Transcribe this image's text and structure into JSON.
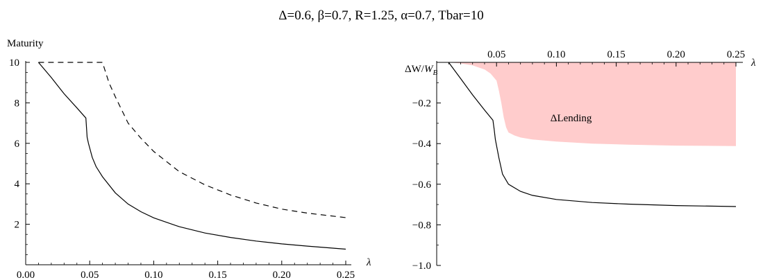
{
  "figure_title": "Δ=0.6, β=0.7, R=1.25, α=0.7, Tbar=10",
  "chart_data": [
    {
      "type": "line",
      "title": "",
      "ylabel": "Maturity",
      "xlabel": "λ",
      "xlim": [
        0,
        0.25
      ],
      "ylim": [
        0,
        10
      ],
      "x_ticks": [
        0.0,
        0.05,
        0.1,
        0.15,
        0.2,
        0.25
      ],
      "x_tick_labels": [
        "0.00",
        "0.05",
        "0.10",
        "0.15",
        "0.20",
        "0.25"
      ],
      "y_ticks": [
        2,
        4,
        6,
        8,
        10
      ],
      "y_tick_labels": [
        "2",
        "4",
        "6",
        "8",
        "10"
      ],
      "grid": false,
      "series": [
        {
          "style": "solid",
          "color": "#000000",
          "points": [
            [
              0.01,
              10.0
            ],
            [
              0.02,
              9.25
            ],
            [
              0.03,
              8.45
            ],
            [
              0.04,
              7.75
            ],
            [
              0.047,
              7.25
            ],
            [
              0.048,
              6.3
            ],
            [
              0.049,
              6.0
            ],
            [
              0.052,
              5.3
            ],
            [
              0.055,
              4.85
            ],
            [
              0.06,
              4.35
            ],
            [
              0.07,
              3.55
            ],
            [
              0.08,
              3.0
            ],
            [
              0.09,
              2.62
            ],
            [
              0.1,
              2.32
            ],
            [
              0.12,
              1.88
            ],
            [
              0.14,
              1.57
            ],
            [
              0.16,
              1.35
            ],
            [
              0.18,
              1.17
            ],
            [
              0.2,
              1.03
            ],
            [
              0.22,
              0.92
            ],
            [
              0.25,
              0.77
            ]
          ]
        },
        {
          "style": "dashed",
          "color": "#000000",
          "points": [
            [
              0.01,
              10.0
            ],
            [
              0.06,
              10.0
            ],
            [
              0.065,
              9.0
            ],
            [
              0.07,
              8.3
            ],
            [
              0.08,
              7.0
            ],
            [
              0.09,
              6.25
            ],
            [
              0.1,
              5.6
            ],
            [
              0.12,
              4.6
            ],
            [
              0.14,
              3.95
            ],
            [
              0.16,
              3.45
            ],
            [
              0.18,
              3.05
            ],
            [
              0.2,
              2.75
            ],
            [
              0.22,
              2.55
            ],
            [
              0.25,
              2.33
            ]
          ]
        }
      ]
    },
    {
      "type": "area",
      "title": "",
      "ylabel": "ΔW/W_B",
      "ylabel_main": "ΔW/",
      "ylabel_sub_base": "W",
      "ylabel_sub": "B",
      "xlabel": "λ",
      "xlim": [
        0,
        0.25
      ],
      "ylim": [
        -1.0,
        0
      ],
      "x_ticks": [
        0.05,
        0.1,
        0.15,
        0.2,
        0.25
      ],
      "x_tick_labels": [
        "0.05",
        "0.10",
        "0.15",
        "0.20",
        "0.25"
      ],
      "y_ticks": [
        -0.2,
        -0.4,
        -0.6,
        -0.8,
        -1.0
      ],
      "y_tick_labels": [
        "−0.2",
        "−0.4",
        "−0.6",
        "−0.8",
        "−1.0"
      ],
      "grid": false,
      "annotation": {
        "text": "ΔLending",
        "x": 0.095,
        "y": -0.29
      },
      "fill_color": "#ffcccc",
      "series": [
        {
          "style": "solid",
          "color": "#000000",
          "points": [
            [
              0.01,
              0.0
            ],
            [
              0.02,
              -0.08
            ],
            [
              0.03,
              -0.16
            ],
            [
              0.04,
              -0.235
            ],
            [
              0.047,
              -0.285
            ],
            [
              0.048,
              -0.33
            ],
            [
              0.049,
              -0.38
            ],
            [
              0.052,
              -0.47
            ],
            [
              0.055,
              -0.55
            ],
            [
              0.06,
              -0.6
            ],
            [
              0.07,
              -0.635
            ],
            [
              0.08,
              -0.655
            ],
            [
              0.1,
              -0.675
            ],
            [
              0.13,
              -0.69
            ],
            [
              0.16,
              -0.698
            ],
            [
              0.2,
              -0.705
            ],
            [
              0.25,
              -0.71
            ]
          ]
        },
        {
          "name": "ΔLending",
          "style": "fill",
          "color": "#ffcccc",
          "points": [
            [
              0.01,
              0.0
            ],
            [
              0.02,
              -0.005
            ],
            [
              0.03,
              -0.015
            ],
            [
              0.04,
              -0.035
            ],
            [
              0.045,
              -0.055
            ],
            [
              0.05,
              -0.09
            ],
            [
              0.052,
              -0.14
            ],
            [
              0.054,
              -0.2
            ],
            [
              0.056,
              -0.27
            ],
            [
              0.058,
              -0.32
            ],
            [
              0.06,
              -0.345
            ],
            [
              0.065,
              -0.36
            ],
            [
              0.07,
              -0.37
            ],
            [
              0.08,
              -0.38
            ],
            [
              0.1,
              -0.39
            ],
            [
              0.13,
              -0.4
            ],
            [
              0.16,
              -0.405
            ],
            [
              0.2,
              -0.41
            ],
            [
              0.25,
              -0.412
            ]
          ]
        }
      ]
    }
  ]
}
